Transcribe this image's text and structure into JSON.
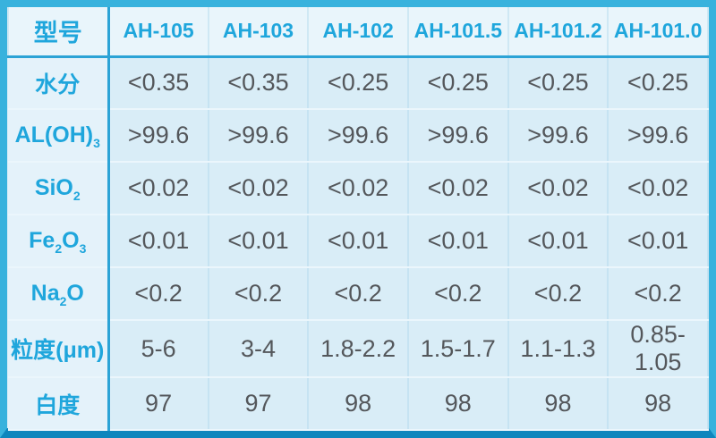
{
  "chart_data": {
    "type": "table",
    "title": "",
    "corner_label": "型号",
    "columns": [
      "型号",
      "AH-105",
      "AH-103",
      "AH-102",
      "AH-101.5",
      "AH-101.2",
      "AH-101.0"
    ],
    "rows": [
      {
        "id": "moisture",
        "label": "水分",
        "label_parts": [
          {
            "text": "水分"
          }
        ],
        "values": [
          "<0.35",
          "<0.35",
          "<0.25",
          "<0.25",
          "<0.25",
          "<0.25"
        ]
      },
      {
        "id": "al-oh-3",
        "label": "AL(OH)3",
        "label_parts": [
          {
            "text": "AL(OH)"
          },
          {
            "text": "3",
            "sub": true
          }
        ],
        "values": [
          ">99.6",
          ">99.6",
          ">99.6",
          ">99.6",
          ">99.6",
          ">99.6"
        ]
      },
      {
        "id": "sio2",
        "label": "SiO2",
        "label_parts": [
          {
            "text": "SiO"
          },
          {
            "text": "2",
            "sub": true
          }
        ],
        "values": [
          "<0.02",
          "<0.02",
          "<0.02",
          "<0.02",
          "<0.02",
          "<0.02"
        ]
      },
      {
        "id": "fe2o3",
        "label": "Fe2O3",
        "label_parts": [
          {
            "text": "Fe"
          },
          {
            "text": "2",
            "sub": true
          },
          {
            "text": "O"
          },
          {
            "text": "3",
            "sub": true
          }
        ],
        "values": [
          "<0.01",
          "<0.01",
          "<0.01",
          "<0.01",
          "<0.01",
          "<0.01"
        ]
      },
      {
        "id": "na2o",
        "label": "Na2O",
        "label_parts": [
          {
            "text": "Na"
          },
          {
            "text": "2",
            "sub": true
          },
          {
            "text": "O"
          }
        ],
        "values": [
          "<0.2",
          "<0.2",
          "<0.2",
          "<0.2",
          "<0.2",
          "<0.2"
        ]
      },
      {
        "id": "particle-size",
        "label": "粒度(μm)",
        "label_parts": [
          {
            "text": "粒度(μm)"
          }
        ],
        "values": [
          "5-6",
          "3-4",
          "1.8-2.2",
          "1.5-1.7",
          "1.1-1.3",
          "0.85-1.05"
        ]
      },
      {
        "id": "whiteness",
        "label": "白度",
        "label_parts": [
          {
            "text": "白度"
          }
        ],
        "values": [
          "97",
          "97",
          "98",
          "98",
          "98",
          "98"
        ]
      }
    ]
  },
  "colors": {
    "accent_text": "#1fa6dc",
    "outer_border": "#38b2dd",
    "bottom_border": "#0e86bd",
    "major_divider": "#2ba3d6",
    "value_text": "#54575b",
    "header_cell_bg": "#e9f5fb",
    "label_cell_bg": "#e4f2fa",
    "data_cell_bg": "#d9edf7"
  }
}
